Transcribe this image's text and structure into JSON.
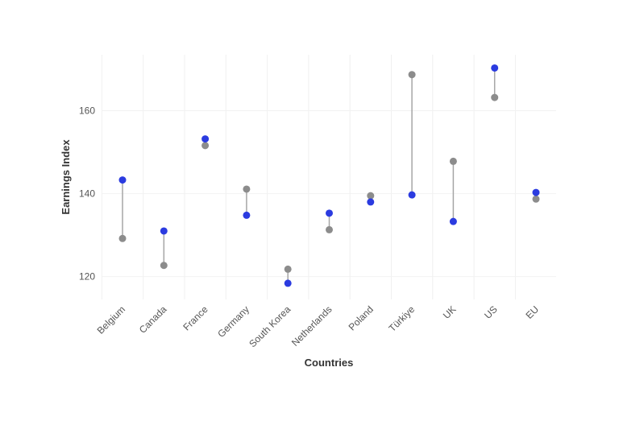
{
  "chart_data": {
    "type": "scatter",
    "title": "",
    "xlabel": "Countries",
    "ylabel": "Earnings Index",
    "categories": [
      "Belgium",
      "Canada",
      "France",
      "Germany",
      "South Korea",
      "Netherlands",
      "Poland",
      "Türkiye",
      "UK",
      "US",
      "EU"
    ],
    "y_ticks": [
      120,
      140,
      160
    ],
    "ylim": [
      114.5,
      173.5
    ],
    "grid": true,
    "legend": "none",
    "series": [
      {
        "values": [
          129.2,
          122.7,
          151.6,
          141.1,
          121.8,
          131.3,
          139.5,
          168.7,
          147.8,
          163.2,
          138.7
        ],
        "color": "#8c8c8c"
      },
      {
        "values": [
          143.3,
          131.0,
          153.2,
          134.8,
          118.4,
          135.3,
          138.0,
          139.7,
          133.3,
          170.3,
          140.3
        ],
        "color": "#2b3be0"
      }
    ],
    "connector_color": "#a6a6a6"
  }
}
